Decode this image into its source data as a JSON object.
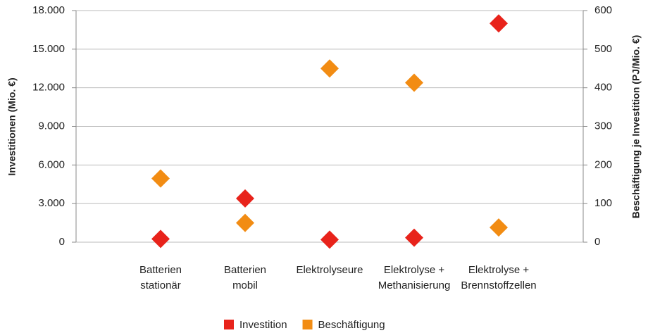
{
  "chart_data": {
    "type": "scatter",
    "y_label": "Investitionen (Mio. €)",
    "y2_label": "Beschäftigung je Investition (PJ/Mio. €)",
    "categories": [
      [
        "Batterien",
        "stationär"
      ],
      [
        "Batterien",
        "mobil"
      ],
      [
        "Elektrolyseure"
      ],
      [
        "Elektrolyse +",
        "Methanisierung"
      ],
      [
        "Elektrolyse +",
        "Brennstoffzellen"
      ]
    ],
    "series": [
      {
        "name": "Investition",
        "color": "#e8231b",
        "values": [
          250,
          3400,
          200,
          350,
          17000
        ]
      },
      {
        "name": "Beschäftigung",
        "color": "#f28c13",
        "axis": "y2",
        "values": [
          165,
          50,
          450,
          413,
          38
        ]
      }
    ],
    "ylim": [
      0,
      18000
    ],
    "yticks": [
      0,
      {
        "value": 3000,
        "label": "3.000"
      },
      {
        "value": 6000,
        "label": "6.000"
      },
      {
        "value": 9000,
        "label": "9.000"
      },
      {
        "value": 12000,
        "label": "12.000"
      },
      {
        "value": 15000,
        "label": "15.000"
      },
      {
        "value": 18000,
        "label": "18.000"
      }
    ],
    "y2lim": [
      0,
      600
    ],
    "y2ticks": [
      0,
      100,
      200,
      300,
      400,
      500,
      600
    ],
    "grid": true,
    "legend": "bottom"
  }
}
